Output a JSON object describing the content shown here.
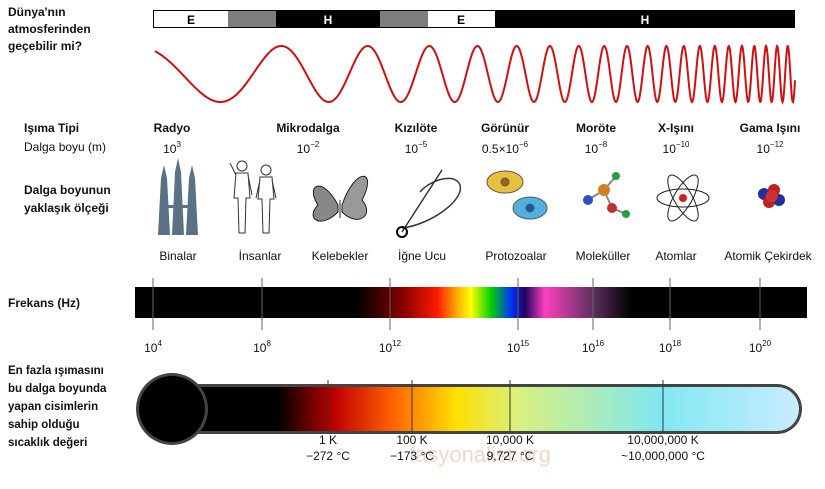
{
  "question": [
    "Dünya'nın",
    "atmosferinden",
    "geçebilir mi?"
  ],
  "atmosphere_bar": [
    "E",
    "H",
    "E",
    "H"
  ],
  "radiation_type_label": "Işıma Tipi",
  "wavelength_label": "Dalga boyu (m)",
  "radiation_types": [
    {
      "name": "Radyo",
      "wavelength": {
        "base": "10",
        "exp": "3"
      }
    },
    {
      "name": "Mikrodalga",
      "wavelength": {
        "base": "10",
        "exp": "−2"
      }
    },
    {
      "name": "Kızılöte",
      "wavelength": {
        "base": "10",
        "exp": "−5"
      }
    },
    {
      "name": "Görünür",
      "wavelength": {
        "base": "0.5×10",
        "exp": "−6"
      }
    },
    {
      "name": "Moröte",
      "wavelength": {
        "base": "10",
        "exp": "−8"
      }
    },
    {
      "name": "X-Işını",
      "wavelength": {
        "base": "10",
        "exp": "−10"
      }
    },
    {
      "name": "Gama Işını",
      "wavelength": {
        "base": "10",
        "exp": "−12"
      }
    }
  ],
  "scale_label": [
    "Dalga boyunun",
    "yaklaşık ölçeği"
  ],
  "scale_objects": [
    "Binalar",
    "İnsanlar",
    "Kelebekler",
    "İğne Ucu",
    "Protozoalar",
    "Moleküller",
    "Atomlar",
    "Atomik Çekirdek"
  ],
  "frequency_label": "Frekans (Hz)",
  "frequency_ticks": [
    {
      "base": "10",
      "exp": "4"
    },
    {
      "base": "10",
      "exp": "8"
    },
    {
      "base": "10",
      "exp": "12"
    },
    {
      "base": "10",
      "exp": "15"
    },
    {
      "base": "10",
      "exp": "16"
    },
    {
      "base": "10",
      "exp": "18"
    },
    {
      "base": "10",
      "exp": "20"
    }
  ],
  "temperature_label": [
    "En fazla ışımasını",
    "bu dalga boyunda",
    "yapan cisimlerin",
    "sahip olduğu",
    "sıcaklık değeri"
  ],
  "temperatures": [
    {
      "kelvin": "1 K",
      "celsius": "−272 °C"
    },
    {
      "kelvin": "100 K",
      "celsius": "−173 °C"
    },
    {
      "kelvin": "10,000 K",
      "celsius": "9,727 °C"
    },
    {
      "kelvin": "10,000,000 K",
      "celsius": "~10,000,000 °C"
    }
  ],
  "watermark": "fasyonalist.org"
}
